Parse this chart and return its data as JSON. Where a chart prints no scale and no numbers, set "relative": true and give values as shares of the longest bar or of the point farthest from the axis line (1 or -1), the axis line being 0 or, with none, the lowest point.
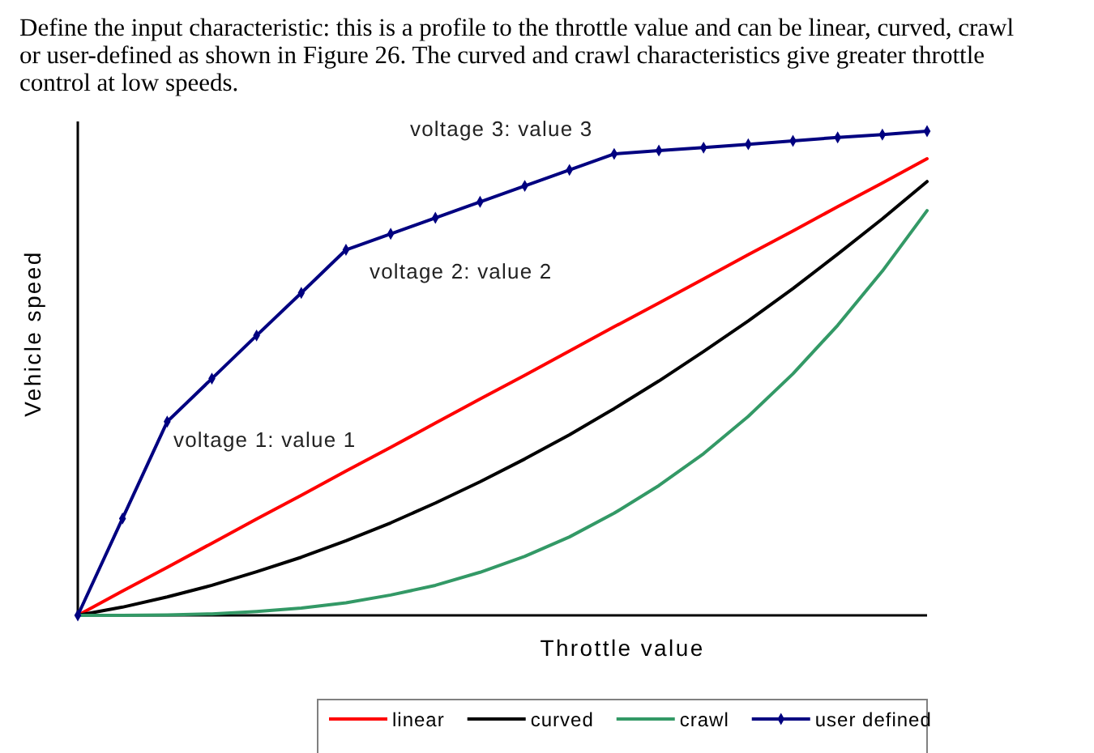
{
  "chart_data": {
    "type": "line",
    "title": "Define the input characteristic: this is a profile to the throttle value and can be linear, curved, crawl or user-defined as shown in Figure 26. The curved and crawl characteristics give greater throttle control at low speeds.",
    "xlabel": "Throttle value",
    "ylabel": "Vehicle speed",
    "relative": true,
    "legend": "bottom",
    "line_style": "solid",
    "categories": [
      null,
      null,
      null,
      null,
      null,
      null,
      null,
      null,
      null,
      null,
      null,
      null,
      null,
      null,
      null,
      null,
      null,
      null,
      null,
      null
    ],
    "series": [
      {
        "name": "linear",
        "color": "#ff0000",
        "values": [
          0,
          0.05,
          0.099,
          0.149,
          0.199,
          0.248,
          0.298,
          0.347,
          0.397,
          0.447,
          0.496,
          0.546,
          0.596,
          0.645,
          0.695,
          0.745,
          0.794,
          0.844,
          0.893,
          0.943
        ]
      },
      {
        "name": "curved",
        "color": "#000000",
        "values": [
          0,
          0.017,
          0.038,
          0.062,
          0.09,
          0.12,
          0.154,
          0.191,
          0.232,
          0.276,
          0.323,
          0.373,
          0.427,
          0.484,
          0.545,
          0.608,
          0.675,
          0.746,
          0.819,
          0.896
        ]
      },
      {
        "name": "crawl",
        "color": "#339966",
        "values": [
          0,
          0,
          0.001,
          0.003,
          0.008,
          0.015,
          0.026,
          0.042,
          0.062,
          0.089,
          0.122,
          0.162,
          0.211,
          0.268,
          0.334,
          0.411,
          0.499,
          0.599,
          0.711,
          0.836
        ]
      },
      {
        "name": "user defined",
        "color": "#000080",
        "marker": "diamond",
        "values": [
          0,
          0.2,
          0.4,
          0.489,
          0.578,
          0.666,
          0.755,
          0.788,
          0.821,
          0.854,
          0.887,
          0.92,
          0.953,
          0.96,
          0.966,
          0.973,
          0.98,
          0.987,
          0.993,
          1
        ]
      }
    ],
    "annotations": [
      "voltage 1: value 1",
      "voltage 2: value 2",
      "voltage 3: value 3"
    ]
  }
}
